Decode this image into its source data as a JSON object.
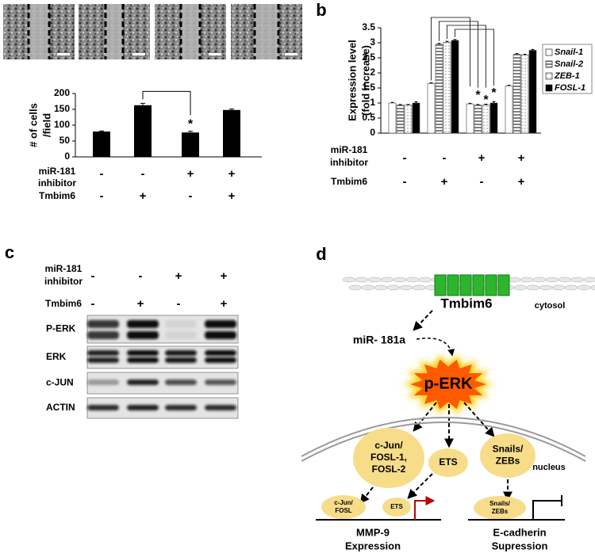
{
  "panel_labels": [
    "a",
    "b",
    "c",
    "d"
  ],
  "chart_data": [
    {
      "type": "bar",
      "ylabel": [
        "# of cells",
        "/field"
      ],
      "values": [
        80,
        163,
        77,
        148
      ],
      "error": [
        2,
        6,
        4,
        3
      ],
      "color": "#000000",
      "ylim": [
        0,
        200
      ],
      "yticks": [
        0,
        50,
        100,
        150,
        200
      ],
      "annotations": [
        "*"
      ],
      "conditions": [
        {
          "label": [
            "miR-181",
            "inhibitor"
          ],
          "signs": [
            "-",
            "-",
            "+",
            "+"
          ]
        },
        {
          "label": [
            "Tmbim6"
          ],
          "signs": [
            "-",
            "+",
            "-",
            "+"
          ]
        }
      ]
    },
    {
      "type": "bar",
      "ylabel": [
        "Expression level",
        "(fold increase)"
      ],
      "series": [
        {
          "name": "Snail-1",
          "color": "#ffffff",
          "pattern": "none",
          "values": [
            1.0,
            1.65,
            0.97,
            1.57
          ],
          "error": [
            0.02,
            0.02,
            0.02,
            0.02
          ]
        },
        {
          "name": "Snail-2",
          "color": "#808080",
          "pattern": "horizontal-lines",
          "values": [
            0.93,
            2.95,
            0.93,
            2.62
          ],
          "error": [
            0.02,
            0.03,
            0.02,
            0.02
          ]
        },
        {
          "name": "ZEB-1",
          "color": "#aaaaaa",
          "pattern": "dots",
          "values": [
            0.93,
            3.02,
            0.93,
            2.6
          ],
          "error": [
            0.02,
            0.03,
            0.03,
            0.02
          ]
        },
        {
          "name": "FOSL-1",
          "color": "#000000",
          "pattern": "none",
          "values": [
            1.0,
            3.08,
            1.0,
            2.75
          ],
          "error": [
            0.04,
            0.03,
            0.05,
            0.03
          ]
        }
      ],
      "ylim": [
        0,
        3.5
      ],
      "yticks": [
        0,
        0.5,
        1,
        1.5,
        2,
        2.5,
        3,
        3.5
      ],
      "annotations": [
        "*",
        "*",
        "*"
      ],
      "legend": "right",
      "conditions": [
        {
          "label": [
            "miR-181",
            "inhibitor"
          ],
          "signs": [
            "-",
            "-",
            "+",
            "+"
          ]
        },
        {
          "label": [
            "Tmbim6"
          ],
          "signs": [
            "-",
            "+",
            "-",
            "+"
          ]
        }
      ]
    }
  ],
  "blot": {
    "conditions": [
      {
        "label": [
          "miR-181",
          "inhibitor"
        ],
        "signs": [
          "-",
          "-",
          "+",
          "+"
        ]
      },
      {
        "label": [
          "Tmbim6"
        ],
        "signs": [
          "-",
          "+",
          "-",
          "+"
        ]
      }
    ],
    "rows": [
      "P-ERK",
      "ERK",
      "c-JUN",
      "ACTIN"
    ]
  },
  "diagram": {
    "membrane_protein": "Tmbim6",
    "cytosol": "cytosol",
    "mirna": "miR- 181a",
    "kinase": "p-ERK",
    "nucleus": "nucleus",
    "factors": [
      [
        "c-Jun/",
        "FOSL-1,",
        "FOSL-2"
      ],
      [
        "ETS"
      ],
      [
        "Snails/",
        "ZEBs"
      ]
    ],
    "promoter_factors": [
      [
        "c-Jun/",
        "FOSL"
      ],
      [
        "ETS"
      ],
      [
        "Snails/",
        "ZEBs"
      ]
    ],
    "outputs": [
      [
        "MMP-9",
        "Expression"
      ],
      [
        "E-cadherin",
        "Supression"
      ]
    ]
  }
}
